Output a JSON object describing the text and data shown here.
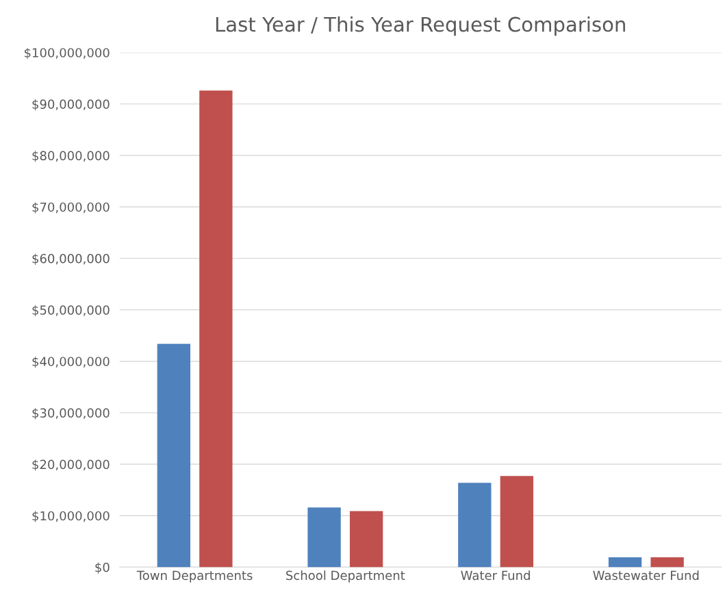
{
  "chart_data": {
    "type": "bar",
    "title": "Last Year / This Year Request Comparison",
    "categories": [
      "Town Departments",
      "School Department",
      "Water Fund",
      "Wastewater Fund"
    ],
    "series": [
      {
        "color": "#4f81bd",
        "values": [
          43400000,
          11600000,
          16400000,
          1900000
        ]
      },
      {
        "color": "#c0504d",
        "values": [
          92600000,
          10900000,
          17700000,
          1900000
        ]
      }
    ],
    "ylim": [
      0,
      100000000
    ],
    "yticks": [
      {
        "value": 0,
        "label": "$0"
      },
      {
        "value": 10000000,
        "label": "$10,000,000"
      },
      {
        "value": 20000000,
        "label": "$20,000,000"
      },
      {
        "value": 30000000,
        "label": "$30,000,000"
      },
      {
        "value": 40000000,
        "label": "$40,000,000"
      },
      {
        "value": 50000000,
        "label": "$50,000,000"
      },
      {
        "value": 60000000,
        "label": "$60,000,000"
      },
      {
        "value": 70000000,
        "label": "$70,000,000"
      },
      {
        "value": 80000000,
        "label": "$80,000,000"
      },
      {
        "value": 90000000,
        "label": "$90,000,000"
      },
      {
        "value": 100000000,
        "label": "$100,000,000"
      }
    ],
    "grid": "y"
  }
}
